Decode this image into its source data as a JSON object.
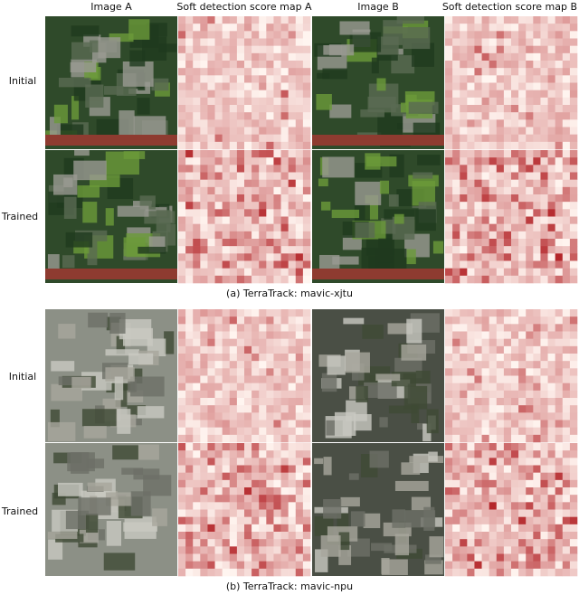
{
  "columns": [
    "Image A",
    "Soft detection score map A",
    "Image B",
    "Soft detection score map B"
  ],
  "panels": [
    {
      "caption": "(a) TerraTrack: mavic-xjtu",
      "rows": [
        "Initial",
        "Trained"
      ]
    },
    {
      "caption": "(b) TerraTrack: mavic-npu",
      "rows": [
        "Initial",
        "Trained"
      ]
    }
  ]
}
